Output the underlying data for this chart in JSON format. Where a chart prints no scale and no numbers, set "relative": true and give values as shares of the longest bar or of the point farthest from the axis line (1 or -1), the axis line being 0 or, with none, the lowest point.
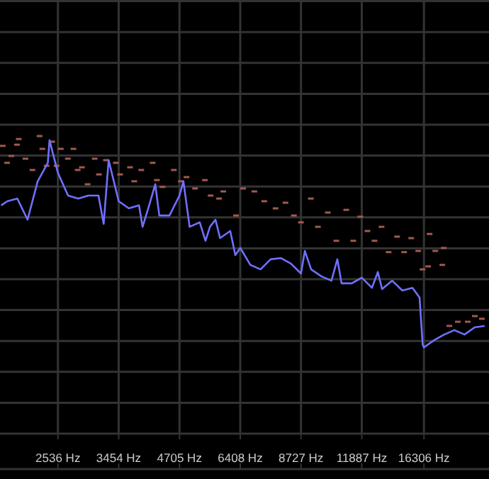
{
  "chart_data": {
    "type": "line",
    "relative": true,
    "log": "x",
    "grid": true,
    "xlim": [
      1889,
      22700
    ],
    "xticks": [
      {
        "value": 2536,
        "label": "2536 Hz"
      },
      {
        "value": 3454,
        "label": "3454 Hz"
      },
      {
        "value": 4705,
        "label": "4705 Hz"
      },
      {
        "value": 6408,
        "label": "6408 Hz"
      },
      {
        "value": 8727,
        "label": "8727 Hz"
      },
      {
        "value": 11887,
        "label": "11887 Hz"
      },
      {
        "value": 16306,
        "label": "16306 Hz"
      }
    ],
    "series": [
      {
        "color": "#7070ff",
        "x": [
          1900,
          1960,
          2063,
          2173,
          2288,
          2409,
          2430,
          2536,
          2670,
          2812,
          2960,
          3117,
          3200,
          3282,
          3454,
          3637,
          3830,
          3900,
          4032,
          4160,
          4246,
          4471,
          4705,
          4800,
          4954,
          5216,
          5370,
          5493,
          5650,
          5783,
          6090,
          6250,
          6408,
          6747,
          7105,
          7481,
          7877,
          8294,
          8727,
          8900,
          9189,
          9676,
          10188,
          10500,
          10727,
          11295,
          11887,
          12516,
          12900,
          13179,
          13877,
          14612,
          15385,
          15950,
          16100,
          16200,
          16306,
          17169,
          18078,
          19035,
          20043,
          21104,
          22200
        ],
        "values": [
          0.767,
          0.781,
          0.79,
          0.719,
          0.848,
          0.91,
          0.986,
          0.876,
          0.8,
          0.79,
          0.8,
          0.8,
          0.705,
          0.919,
          0.781,
          0.757,
          0.767,
          0.695,
          0.767,
          0.838,
          0.733,
          0.733,
          0.8,
          0.848,
          0.695,
          0.71,
          0.648,
          0.695,
          0.719,
          0.657,
          0.681,
          0.6,
          0.624,
          0.567,
          0.552,
          0.586,
          0.59,
          0.571,
          0.538,
          0.614,
          0.552,
          0.529,
          0.514,
          0.586,
          0.505,
          0.505,
          0.524,
          0.49,
          0.543,
          0.486,
          0.514,
          0.481,
          0.49,
          0.457,
          0.362,
          0.3,
          0.29,
          0.314,
          0.333,
          0.348,
          0.333,
          0.357,
          0.362
        ]
      },
      {
        "type": "scatter",
        "color": "#a05a50",
        "x": [
          1916,
          1958,
          2001,
          2059,
          2078,
          2150,
          2228,
          2310,
          2343,
          2394,
          2464,
          2518,
          2573,
          2667,
          2744,
          2804,
          2865,
          2949,
          3057,
          3124,
          3238,
          3405,
          3479,
          3659,
          3738,
          3874,
          4105,
          4195,
          4317,
          4572,
          4739,
          4877,
          5092,
          5354,
          5511,
          5754,
          5879,
          6271,
          6501,
          6885,
          7240,
          7669,
          8064,
          8419,
          8727,
          9177,
          9512,
          10003,
          10445,
          10984,
          11385,
          11802,
          12234,
          12681,
          13143,
          13625,
          14226,
          14747,
          15285,
          15843,
          16189,
          16661,
          16782,
          17271,
          17901,
          18030,
          18556,
          19372,
          20376,
          21120,
          21892
        ],
        "values": [
          0.967,
          0.91,
          0.933,
          0.971,
          0.99,
          0.924,
          0.886,
          1.0,
          0.957,
          0.9,
          0.981,
          0.9,
          0.957,
          0.924,
          0.957,
          0.886,
          0.895,
          0.838,
          0.924,
          0.871,
          0.919,
          0.91,
          0.871,
          0.895,
          0.848,
          0.886,
          0.91,
          0.852,
          0.829,
          0.886,
          0.848,
          0.862,
          0.824,
          0.852,
          0.8,
          0.79,
          0.814,
          0.733,
          0.824,
          0.814,
          0.781,
          0.757,
          0.776,
          0.733,
          0.71,
          0.79,
          0.695,
          0.743,
          0.648,
          0.752,
          0.648,
          0.729,
          0.681,
          0.648,
          0.695,
          0.61,
          0.662,
          0.61,
          0.657,
          0.614,
          0.552,
          0.562,
          0.671,
          0.614,
          0.567,
          0.624,
          0.362,
          0.376,
          0.376,
          0.395,
          0.386
        ]
      }
    ]
  }
}
